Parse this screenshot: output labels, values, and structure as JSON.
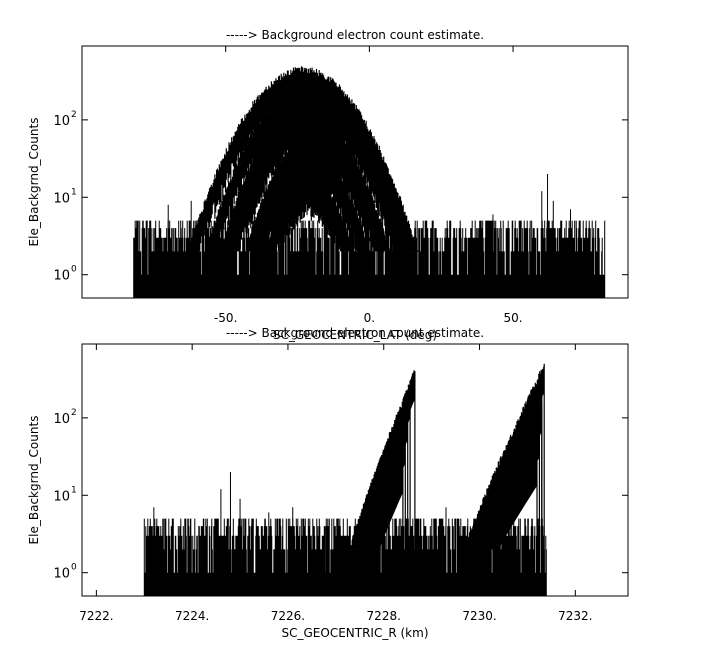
{
  "chart_data": [
    {
      "type": "scatter",
      "title": "-----> Background electron count estimate.",
      "xlabel": "SC_GEOCENTRIC_LAT (deg)",
      "ylabel": "Ele_Backgrnd_Counts",
      "xlim": [
        -100,
        90
      ],
      "ylim": [
        0.5,
        900
      ],
      "yscale": "log",
      "xtick_labels": [
        "-50.",
        "0.",
        "50."
      ],
      "xticks": [
        -50,
        0,
        50
      ],
      "ytick_labels": [
        "10",
        "10",
        "10"
      ],
      "ytick_exponents": [
        "0",
        "1",
        "2"
      ],
      "yticks": [
        1,
        10,
        100
      ],
      "grid": false,
      "noise_floor": {
        "x_range": [
          -82,
          82
        ],
        "values": [
          1,
          2,
          3,
          4,
          5
        ]
      },
      "arcs": [
        {
          "center": -23,
          "half_width": 40,
          "peak": 450,
          "floor": 2
        },
        {
          "center": -21,
          "half_width": 36,
          "peak": 300,
          "floor": 2
        },
        {
          "center": -20,
          "half_width": 32,
          "peak": 200,
          "floor": 2
        },
        {
          "center": -21,
          "half_width": 28,
          "peak": 120,
          "floor": 2
        },
        {
          "center": -19,
          "half_width": 24,
          "peak": 70,
          "floor": 2
        },
        {
          "center": -20,
          "half_width": 20,
          "peak": 35,
          "floor": 2
        },
        {
          "center": -21,
          "half_width": 15,
          "peak": 18,
          "floor": 2
        }
      ],
      "spikes": [
        {
          "x": 62,
          "peak": 20
        },
        {
          "x": 60,
          "peak": 12
        },
        {
          "x": 64,
          "peak": 9
        },
        {
          "x": -70,
          "peak": 8
        },
        {
          "x": -62,
          "peak": 9
        },
        {
          "x": -40,
          "peak": 7
        },
        {
          "x": 43,
          "peak": 6
        },
        {
          "x": 70,
          "peak": 7
        }
      ]
    },
    {
      "type": "scatter",
      "title": "-----> Background electron count estimate.",
      "xlabel": "SC_GEOCENTRIC_R (km)",
      "ylabel": "Ele_Backgrnd_Counts",
      "xlim": [
        7221.7,
        7233.1
      ],
      "ylim": [
        0.5,
        900
      ],
      "yscale": "log",
      "xtick_labels": [
        "7222.",
        "7224.",
        "7226.",
        "7228.",
        "7230.",
        "7232."
      ],
      "xticks": [
        7222,
        7224,
        7226,
        7228,
        7230,
        7232
      ],
      "ytick_labels": [
        "10",
        "10",
        "10"
      ],
      "ytick_exponents": [
        "0",
        "1",
        "2"
      ],
      "yticks": [
        1,
        10,
        100
      ],
      "grid": false,
      "noise_floor": {
        "x_range": [
          7223,
          7231.4
        ],
        "values": [
          1,
          2,
          3,
          4,
          5
        ]
      },
      "ramps": [
        {
          "x_start": 7227.3,
          "x_end": 7228.65,
          "peak": 400,
          "floor": 2
        },
        {
          "x_start": 7227.4,
          "x_end": 7228.55,
          "peak": 230,
          "floor": 2
        },
        {
          "x_start": 7227.5,
          "x_end": 7228.5,
          "peak": 120,
          "floor": 2
        },
        {
          "x_start": 7227.6,
          "x_end": 7228.45,
          "peak": 60,
          "floor": 2
        },
        {
          "x_start": 7227.7,
          "x_end": 7228.4,
          "peak": 25,
          "floor": 2
        },
        {
          "x_start": 7229.7,
          "x_end": 7231.35,
          "peak": 480,
          "floor": 2
        },
        {
          "x_start": 7229.8,
          "x_end": 7231.3,
          "peak": 280,
          "floor": 2
        },
        {
          "x_start": 7229.9,
          "x_end": 7231.3,
          "peak": 150,
          "floor": 2
        },
        {
          "x_start": 7230.0,
          "x_end": 7231.25,
          "peak": 70,
          "floor": 2
        },
        {
          "x_start": 7230.1,
          "x_end": 7231.2,
          "peak": 30,
          "floor": 2
        }
      ],
      "spikes": [
        {
          "x": 7224.8,
          "peak": 20
        },
        {
          "x": 7224.6,
          "peak": 12
        },
        {
          "x": 7225.0,
          "peak": 9
        },
        {
          "x": 7223.2,
          "peak": 7
        },
        {
          "x": 7226.1,
          "peak": 7
        },
        {
          "x": 7225.6,
          "peak": 6
        },
        {
          "x": 7229.3,
          "peak": 7
        },
        {
          "x": 7226.8,
          "peak": 5
        }
      ]
    }
  ]
}
